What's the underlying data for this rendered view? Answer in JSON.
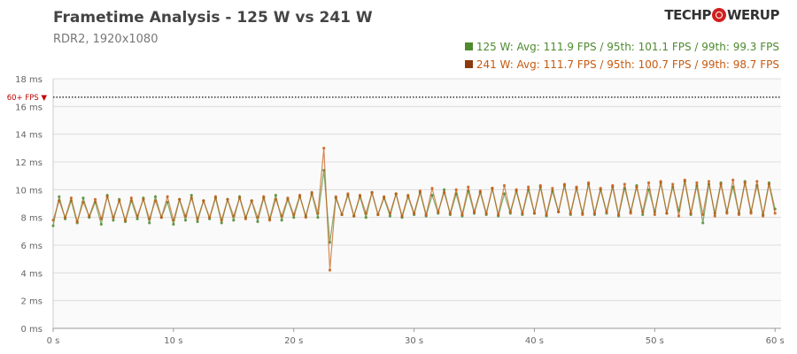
{
  "header": {
    "title": "Frametime Analysis - 125 W vs 241 W",
    "subtitle": "RDR2, 1920x1080",
    "logo": "TECHPOWERUP"
  },
  "legend": [
    {
      "label": "125 W: Avg: 111.9 FPS / 95th: 101.1 FPS / 99th: 99.3 FPS",
      "color": "#4f8a2f"
    },
    {
      "label": "241 W: Avg: 111.7 FPS / 95th: 100.7 FPS / 99th: 98.7 FPS",
      "color": "#c55a11"
    }
  ],
  "chart_data": {
    "type": "scatter",
    "title": "Frametime Analysis - 125 W vs 241 W",
    "subtitle": "RDR2, 1920x1080",
    "xlim": [
      0,
      60.5
    ],
    "ylim": [
      0,
      18
    ],
    "x_ticks": [
      "0 s",
      "10 s",
      "20 s",
      "30 s",
      "40 s",
      "50 s",
      "60 s"
    ],
    "y_ticks": [
      "0 ms",
      "2 ms",
      "4 ms",
      "6 ms",
      "8 ms",
      "10 ms",
      "12 ms",
      "14 ms",
      "16 ms",
      "18 ms"
    ],
    "reference_line": {
      "label": "60+ FPS ▼",
      "value": 16.67,
      "color": "#c00000"
    },
    "grid": true,
    "legend_position": "top-right",
    "x_step": 0.5,
    "series": [
      {
        "name": "125 W",
        "color": "#4f8a2f",
        "values": [
          7.4,
          9.5,
          7.9,
          9.2,
          7.6,
          9.4,
          8.0,
          9.1,
          7.5,
          9.6,
          7.8,
          9.3,
          7.7,
          9.2,
          7.9,
          9.4,
          7.6,
          9.5,
          8.0,
          9.1,
          7.5,
          9.3,
          7.8,
          9.6,
          7.7,
          9.2,
          7.9,
          9.4,
          7.6,
          9.3,
          7.8,
          9.5,
          8.0,
          9.2,
          7.7,
          9.4,
          7.9,
          9.6,
          7.8,
          9.3,
          8.0,
          9.5,
          8.1,
          9.7,
          8.0,
          11.4,
          6.2,
          9.4,
          8.2,
          9.6,
          8.1,
          9.5,
          8.0,
          9.8,
          8.2,
          9.4,
          8.1,
          9.7,
          8.0,
          9.5,
          8.2,
          9.8,
          8.1,
          9.6,
          8.3,
          10.0,
          8.2,
          9.7,
          8.1,
          9.9,
          8.3,
          9.8,
          8.2,
          10.1,
          8.1,
          9.7,
          8.3,
          9.9,
          8.2,
          10.0,
          8.3,
          10.2,
          8.1,
          9.9,
          8.4,
          10.3,
          8.2,
          10.1,
          8.3,
          10.4,
          8.2,
          10.0,
          8.3,
          10.2,
          8.1,
          10.1,
          8.4,
          10.3,
          8.2,
          10.0,
          8.4,
          10.5,
          8.3,
          10.2,
          8.5,
          10.6,
          8.2,
          10.3,
          7.6,
          10.4,
          8.3,
          10.5,
          8.4,
          10.2,
          8.3,
          10.6,
          8.4,
          10.3,
          8.2,
          10.5,
          8.6
        ]
      },
      {
        "name": "241 W",
        "color": "#c55a11",
        "values": [
          7.8,
          9.2,
          8.0,
          9.4,
          7.7,
          9.1,
          8.1,
          9.3,
          7.9,
          9.5,
          8.0,
          9.2,
          7.8,
          9.4,
          8.1,
          9.3,
          7.9,
          9.2,
          8.0,
          9.5,
          7.8,
          9.3,
          8.1,
          9.4,
          7.9,
          9.2,
          8.0,
          9.5,
          7.8,
          9.3,
          8.1,
          9.4,
          7.9,
          9.2,
          8.0,
          9.5,
          7.8,
          9.3,
          8.1,
          9.4,
          8.2,
          9.6,
          8.0,
          9.8,
          8.3,
          13.0,
          4.2,
          9.5,
          8.2,
          9.7,
          8.1,
          9.6,
          8.3,
          9.8,
          8.2,
          9.5,
          8.3,
          9.7,
          8.1,
          9.6,
          8.3,
          9.9,
          8.2,
          10.1,
          8.4,
          9.8,
          8.3,
          10.0,
          8.2,
          10.2,
          8.4,
          9.9,
          8.3,
          10.1,
          8.2,
          10.3,
          8.4,
          10.0,
          8.3,
          10.2,
          8.3,
          10.3,
          8.2,
          10.1,
          8.4,
          10.4,
          8.3,
          10.2,
          8.2,
          10.5,
          8.3,
          10.1,
          8.4,
          10.3,
          8.2,
          10.4,
          8.3,
          10.2,
          8.4,
          10.5,
          8.2,
          10.6,
          8.3,
          10.4,
          8.1,
          10.7,
          8.3,
          10.5,
          8.2,
          10.6,
          8.1,
          10.4,
          8.3,
          10.7,
          8.2,
          10.5,
          8.3,
          10.6,
          8.1,
          10.4,
          8.3
        ]
      }
    ]
  }
}
